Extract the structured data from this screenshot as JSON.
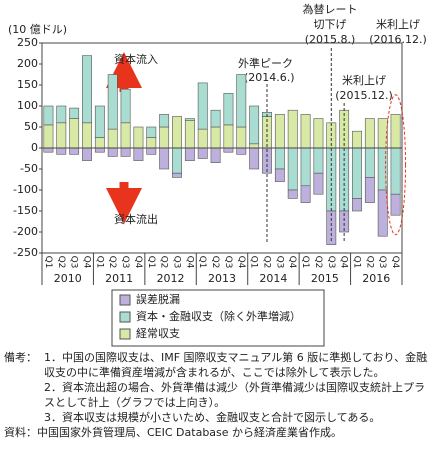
{
  "chart_data": {
    "type": "bar",
    "stacked": true,
    "y_unit": "(10 億ドル)",
    "categories": [
      "Q1",
      "Q2",
      "Q3",
      "Q4",
      "Q1",
      "Q2",
      "Q3",
      "Q4",
      "Q1",
      "Q2",
      "Q3",
      "Q4",
      "Q1",
      "Q2",
      "Q3",
      "Q4",
      "Q1",
      "Q2",
      "Q3",
      "Q4",
      "Q1",
      "Q2",
      "Q3",
      "Q4",
      "Q1",
      "Q2",
      "Q3",
      "Q4"
    ],
    "years": [
      "2010",
      "2011",
      "2012",
      "2013",
      "2014",
      "2015",
      "2016"
    ],
    "series": [
      {
        "name": "経常収支",
        "color": "#d8e9a6",
        "values": [
          55,
          60,
          70,
          60,
          25,
          45,
          60,
          50,
          25,
          50,
          75,
          65,
          45,
          50,
          55,
          50,
          10,
          75,
          80,
          90,
          80,
          70,
          60,
          90,
          40,
          70,
          70,
          80
        ]
      },
      {
        "name": "資本・金融収支（除く外準増減）",
        "color": "#a9ddd2",
        "values": [
          45,
          40,
          25,
          160,
          75,
          130,
          80,
          0,
          25,
          30,
          -60,
          5,
          110,
          40,
          75,
          125,
          90,
          10,
          -50,
          -100,
          -90,
          -60,
          -150,
          -150,
          -120,
          -70,
          -100,
          -110
        ]
      },
      {
        "name": "誤差脱漏",
        "color": "#bdb0dc",
        "values": [
          -10,
          -15,
          -15,
          -30,
          -10,
          -20,
          -20,
          -30,
          -15,
          -50,
          -10,
          -30,
          -25,
          -35,
          -10,
          -15,
          -50,
          -60,
          -30,
          -20,
          -40,
          -50,
          -80,
          -50,
          -30,
          -60,
          -110,
          -50
        ]
      }
    ],
    "ylim": [
      -250,
      250
    ],
    "yticks": [
      -250,
      -200,
      -150,
      -100,
      -50,
      0,
      50,
      100,
      150,
      200,
      250
    ],
    "annotations": [
      "資本流入",
      "資本流出",
      "外準ピーク",
      "(2014.6.)",
      "為替レート",
      "切下げ",
      "(2015.8.)",
      "米利上げ",
      "(2016.12.)",
      "米利上げ",
      "(2015.12.)"
    ]
  },
  "notes": {
    "label": "備考：",
    "items": [
      "1．中国の国際収支は、IMF 国際収支マニュアル第 6 版に準拠しており、金融収支の中に準備資産増減が含まれるが、ここでは除外して表示した。",
      "2．資本流出超の場合、外貨準備は減少（外貨準備減少は国際収支統計上プラスとして計上（グラフでは上向き）。",
      "3．資本収支は規模が小さいため、金融収支と合計で図示してある。"
    ]
  },
  "source": "資料：中国国家外貨管理局、CEIC Database から経済産業省作成。"
}
